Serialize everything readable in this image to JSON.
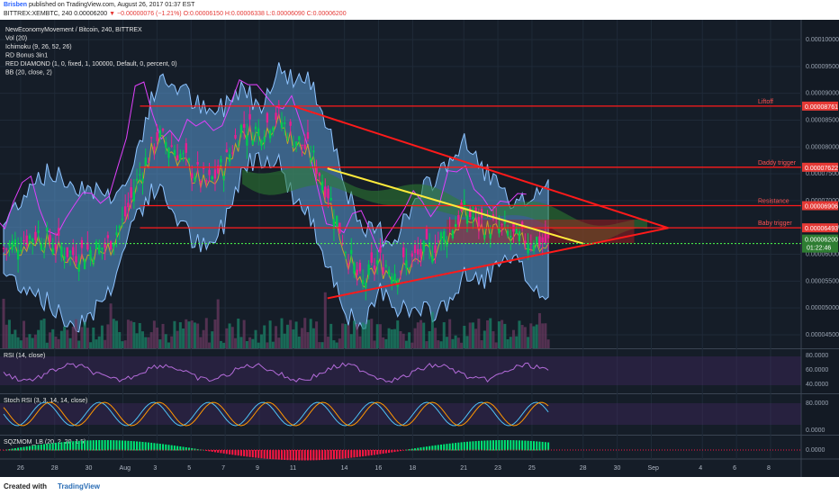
{
  "header": {
    "author": "Brisben",
    "published": "published on TradingView.com, August 26, 2017 01:37 EST",
    "symbol_line": "BITTREX:XEMBTC, 240",
    "price": "0.00006200",
    "change": "▼ −0.00000076 (−1.21%)",
    "ohlc": "O:0.00006150 H:0.00006338 L:0.00006090 C:0.00006200"
  },
  "legend": [
    "NewEconomyMovement / Bitcoin, 240, BITTREX",
    "Vol (20)",
    "Ichimoku (9, 26, 52, 26)",
    "RD Bonus 3in1",
    "RED DIAMOND (1, 0, fixed, 1, 100000, Default, 0, percent, 0)",
    "BB (20, close, 2)"
  ],
  "price_axis": [
    "0.00010000",
    "0.00009500",
    "0.00009000",
    "0.00008500",
    "0.00008000",
    "0.00007500",
    "0.00007000",
    "0.00006500",
    "0.00006000",
    "0.00005500",
    "0.00005000",
    "0.00004500"
  ],
  "level_labels": [
    {
      "text": "Liftoff",
      "value": "0.00008761"
    },
    {
      "text": "Daddy trigger",
      "value": "0.00007622"
    },
    {
      "text": "Resistance",
      "value": "0.00006906"
    },
    {
      "text": "Baby trigger",
      "value": "0.00006493"
    }
  ],
  "price_tag": {
    "value": "0.00006200",
    "countdown": "01:22:46"
  },
  "rsi": {
    "label": "RSI (14, close)",
    "axis": [
      "80.0000",
      "60.0000",
      "40.0000"
    ]
  },
  "stoch": {
    "label": "Stoch RSI (3, 3, 14, 14, close)",
    "axis": [
      "80.0000",
      "0.0000"
    ]
  },
  "sqz": {
    "label": "SQZMOM_LB (20, 2, 20, 1.5)",
    "axis": [
      "0.0000"
    ]
  },
  "time_axis": [
    "26",
    "28",
    "30",
    "Aug",
    "3",
    "5",
    "7",
    "9",
    "11",
    "14",
    "16",
    "18",
    "21",
    "23",
    "25",
    "28",
    "30",
    "Sep",
    "4",
    "6",
    "8"
  ],
  "footer": {
    "created": "Created with",
    "brand": "TradingView"
  },
  "colors": {
    "bg": "#151d28",
    "up": "#00c853",
    "down": "#e91e90",
    "bb": "#5b9bd5",
    "level": "#ff1a1a",
    "trend_yellow": "#ffeb3b"
  },
  "chart_data": {
    "type": "candlestick",
    "symbol": "XEMBTC",
    "timeframe": "240",
    "exchange": "BITTREX",
    "x_range": [
      "Jul 26",
      "Sep 8"
    ],
    "ylim": [
      4.2e-05,
      0.000103
    ],
    "levels": [
      8.761e-05,
      7.622e-05,
      6.906e-05,
      6.493e-05
    ],
    "last": 6.2e-05,
    "close_path": [
      {
        "x": "Jul 25",
        "y": 6.1e-05
      },
      {
        "x": "Jul 27",
        "y": 6.4e-05
      },
      {
        "x": "Jul 29",
        "y": 6e-05
      },
      {
        "x": "Jul 31",
        "y": 6.15e-05
      },
      {
        "x": "Aug 1",
        "y": 6.6e-05
      },
      {
        "x": "Aug 2",
        "y": 7.5e-05
      },
      {
        "x": "Aug 3",
        "y": 8.2e-05
      },
      {
        "x": "Aug 4",
        "y": 8e-05
      },
      {
        "x": "Aug 5",
        "y": 7.6e-05
      },
      {
        "x": "Aug 6",
        "y": 7.3e-05
      },
      {
        "x": "Aug 7",
        "y": 7.7e-05
      },
      {
        "x": "Aug 8",
        "y": 8.4e-05
      },
      {
        "x": "Aug 9",
        "y": 8.3e-05
      },
      {
        "x": "Aug 10",
        "y": 8.6e-05
      },
      {
        "x": "Aug 11",
        "y": 8.2e-05
      },
      {
        "x": "Aug 12",
        "y": 7.9e-05
      },
      {
        "x": "Aug 13",
        "y": 7.2e-05
      },
      {
        "x": "Aug 14",
        "y": 6.2e-05
      },
      {
        "x": "Aug 15",
        "y": 5.4e-05
      },
      {
        "x": "Aug 16",
        "y": 5.9e-05
      },
      {
        "x": "Aug 17",
        "y": 5.7e-05
      },
      {
        "x": "Aug 18",
        "y": 5.9e-05
      },
      {
        "x": "Aug 19",
        "y": 6.1e-05
      },
      {
        "x": "Aug 20",
        "y": 6.4e-05
      },
      {
        "x": "Aug 21",
        "y": 6.8e-05
      },
      {
        "x": "Aug 22",
        "y": 6.6e-05
      },
      {
        "x": "Aug 23",
        "y": 6.5e-05
      },
      {
        "x": "Aug 24",
        "y": 6.3e-05
      },
      {
        "x": "Aug 25",
        "y": 6.3e-05
      },
      {
        "x": "Aug 26",
        "y": 6.2e-05
      }
    ]
  }
}
